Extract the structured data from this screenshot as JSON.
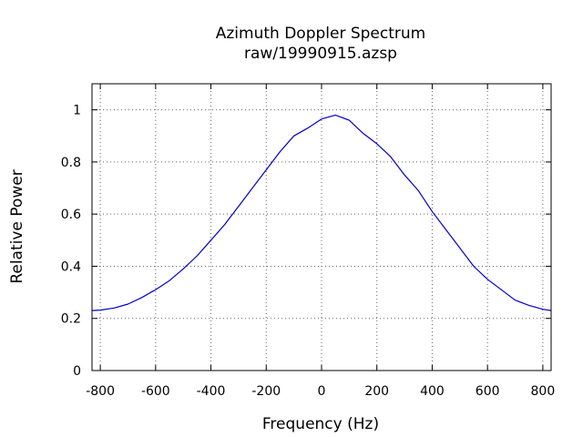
{
  "chart_data": {
    "type": "line",
    "title": "Azimuth Doppler Spectrum",
    "subtitle": "raw/19990915.azsp",
    "xlabel": "Frequency (Hz)",
    "ylabel": "Relative Power",
    "xlim": [
      -830,
      830
    ],
    "ylim": [
      0,
      1.1
    ],
    "x_ticks": [
      -800,
      -600,
      -400,
      -200,
      0,
      200,
      400,
      600,
      800
    ],
    "y_ticks": [
      0,
      0.2,
      0.4,
      0.6,
      0.8,
      1
    ],
    "x_tick_labels": [
      "-800",
      "-600",
      "-400",
      "-200",
      "0",
      "200",
      "400",
      "600",
      "800"
    ],
    "y_tick_labels": [
      "0",
      "0.2",
      "0.4",
      "0.6",
      "0.8",
      "1"
    ],
    "grid": true,
    "series": [
      {
        "color": "#0000cc",
        "x": [
          -830,
          -800,
          -750,
          -700,
          -650,
          -600,
          -550,
          -500,
          -450,
          -400,
          -350,
          -300,
          -250,
          -200,
          -150,
          -100,
          -50,
          0,
          50,
          100,
          150,
          200,
          250,
          300,
          350,
          400,
          450,
          500,
          550,
          600,
          650,
          700,
          750,
          800,
          830
        ],
        "y": [
          0.23,
          0.232,
          0.24,
          0.255,
          0.28,
          0.31,
          0.345,
          0.39,
          0.44,
          0.5,
          0.56,
          0.63,
          0.7,
          0.77,
          0.84,
          0.9,
          0.93,
          0.965,
          0.98,
          0.96,
          0.91,
          0.87,
          0.82,
          0.75,
          0.69,
          0.61,
          0.54,
          0.47,
          0.4,
          0.35,
          0.31,
          0.27,
          0.25,
          0.235,
          0.23
        ]
      }
    ]
  }
}
